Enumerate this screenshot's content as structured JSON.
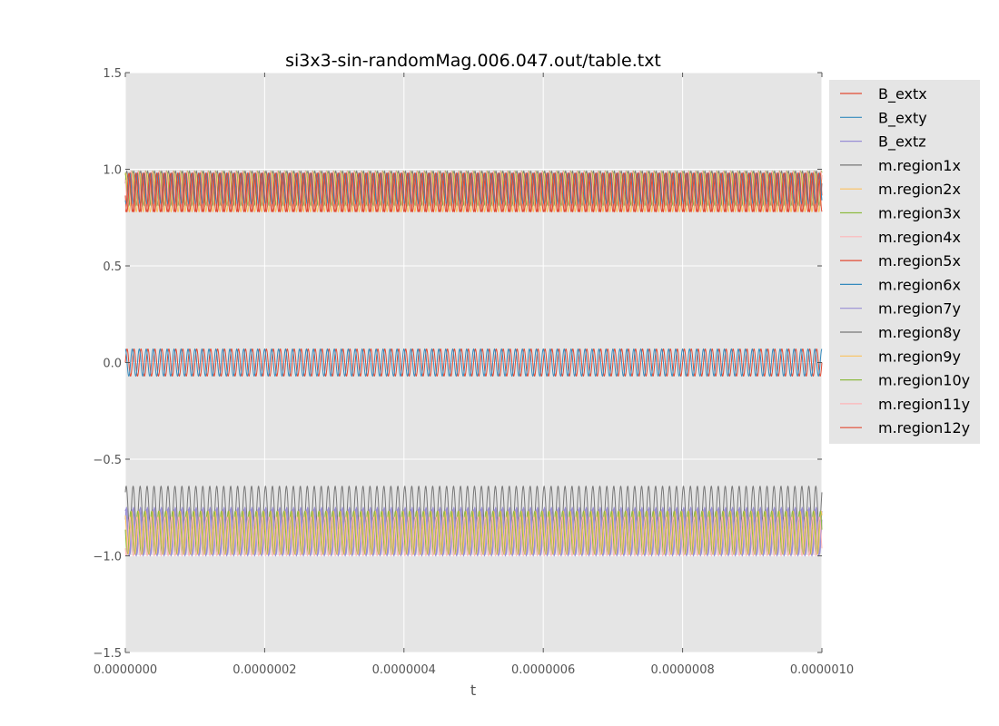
{
  "chart_data": {
    "type": "line",
    "title": "si3x3-sin-randomMag.006.047.out/table.txt",
    "xlabel": "t",
    "ylabel": "",
    "xlim": [
      0,
      1e-06
    ],
    "ylim": [
      -1.5,
      1.5
    ],
    "x_ticks": [
      "0.0000000",
      "0.0000002",
      "0.0000004",
      "0.0000006",
      "0.0000008",
      "0.0000010"
    ],
    "y_ticks": [
      "1.5",
      "1.0",
      "0.5",
      "0.0",
      "−0.5",
      "−1.0",
      "−1.5"
    ],
    "grid": true,
    "legend_position": "outside-right",
    "n_cycles": 100,
    "series": [
      {
        "name": "B_extx",
        "color": "#E24A33",
        "center": 0.0,
        "amplitude": 0.07,
        "phase": 0.0
      },
      {
        "name": "B_exty",
        "color": "#348ABD",
        "center": 0.0,
        "amplitude": 0.07,
        "phase": 1.57
      },
      {
        "name": "B_extz",
        "color": "#988ED5",
        "center": -0.87,
        "amplitude": 0.12,
        "phase": 0.5
      },
      {
        "name": "m.region1x",
        "color": "#777777",
        "center": 0.9,
        "amplitude": 0.09,
        "phase": 0.3
      },
      {
        "name": "m.region2x",
        "color": "#FBC15E",
        "center": 0.88,
        "amplitude": 0.1,
        "phase": 1.1
      },
      {
        "name": "m.region3x",
        "color": "#8EBA42",
        "center": 0.9,
        "amplitude": 0.09,
        "phase": 2.0
      },
      {
        "name": "m.region4x",
        "color": "#FFB5B8",
        "center": 0.9,
        "amplitude": 0.09,
        "phase": 2.6
      },
      {
        "name": "m.region5x",
        "color": "#E24A33",
        "center": 0.88,
        "amplitude": 0.1,
        "phase": 3.3
      },
      {
        "name": "m.region6x",
        "color": "#348ABD",
        "center": 0.9,
        "amplitude": 0.08,
        "phase": 4.0
      },
      {
        "name": "m.region7y",
        "color": "#988ED5",
        "center": -0.88,
        "amplitude": 0.12,
        "phase": 1.2
      },
      {
        "name": "m.region8y",
        "color": "#777777",
        "center": -0.75,
        "amplitude": 0.11,
        "phase": 0.8
      },
      {
        "name": "m.region9y",
        "color": "#FBC15E",
        "center": -0.88,
        "amplitude": 0.11,
        "phase": 2.2
      },
      {
        "name": "m.region10y",
        "color": "#8EBA42",
        "center": -0.88,
        "amplitude": 0.11,
        "phase": 3.0
      },
      {
        "name": "m.region11y",
        "color": "#FFB5B8",
        "center": -0.9,
        "amplitude": 0.1,
        "phase": 3.8
      },
      {
        "name": "m.region12y",
        "color": "#E24A33",
        "center": 0.88,
        "amplitude": 0.1,
        "phase": 4.6
      }
    ]
  }
}
